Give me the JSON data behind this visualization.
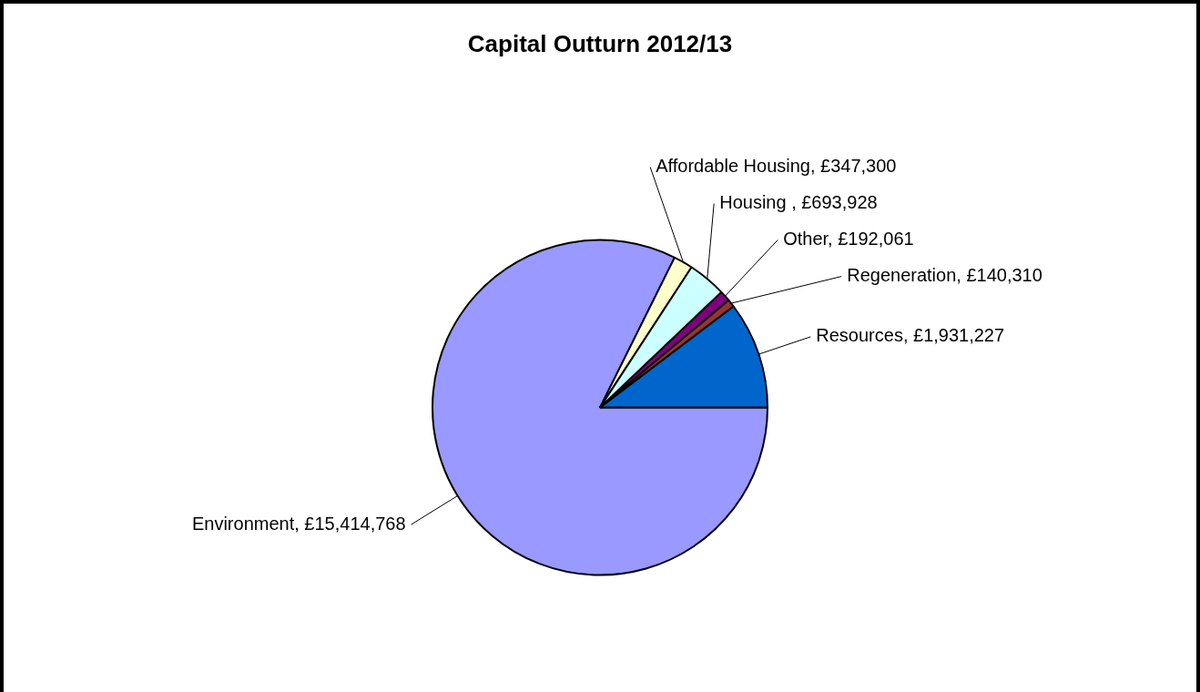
{
  "chart_data": {
    "type": "pie",
    "title": "Capital Outturn 2012/13",
    "categories": [
      "Environment",
      "Affordable Housing",
      "Housing ",
      "Other",
      "Regeneration",
      "Resources"
    ],
    "values": [
      15414768,
      347300,
      693928,
      192061,
      140310,
      1931227
    ],
    "value_labels": [
      "£15,414,768",
      "£347,300",
      "£693,928",
      "£192,061",
      "£140,310",
      "£1,931,227"
    ],
    "colors": [
      "#9999ff",
      "#ffffcc",
      "#ccffff",
      "#800080",
      "#993333",
      "#0066cc"
    ],
    "legend": false
  }
}
